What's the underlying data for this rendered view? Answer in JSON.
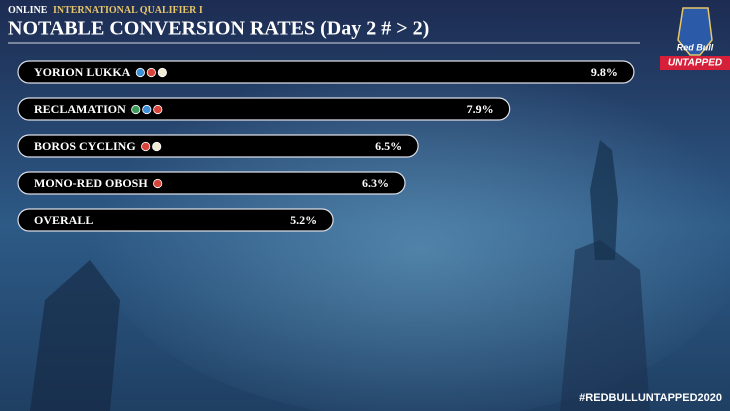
{
  "chart_data": {
    "type": "bar",
    "orientation": "horizontal",
    "subtitle_prefix": "ONLINE",
    "subtitle": "INTERNATIONAL QUALIFIER I",
    "title": "NOTABLE CONVERSION RATES (Day 2 # > 2)",
    "categories": [
      "YORION LUKKA",
      "RECLAMATION",
      "BOROS CYCLING",
      "MONO-RED OBOSH",
      "OVERALL"
    ],
    "values": [
      9.8,
      7.9,
      6.5,
      6.3,
      5.2
    ],
    "value_labels": [
      "9.8%",
      "7.9%",
      "6.5%",
      "6.3%",
      "5.2%"
    ],
    "mana": [
      [
        "blue",
        "red",
        "white"
      ],
      [
        "green",
        "blue",
        "red"
      ],
      [
        "red",
        "white"
      ],
      [
        "red"
      ],
      []
    ],
    "color": "#000000",
    "logo": [
      "Red Bull",
      "UNTAPPED"
    ],
    "hashtag": "#REDBULLUNTAPPED2020"
  }
}
